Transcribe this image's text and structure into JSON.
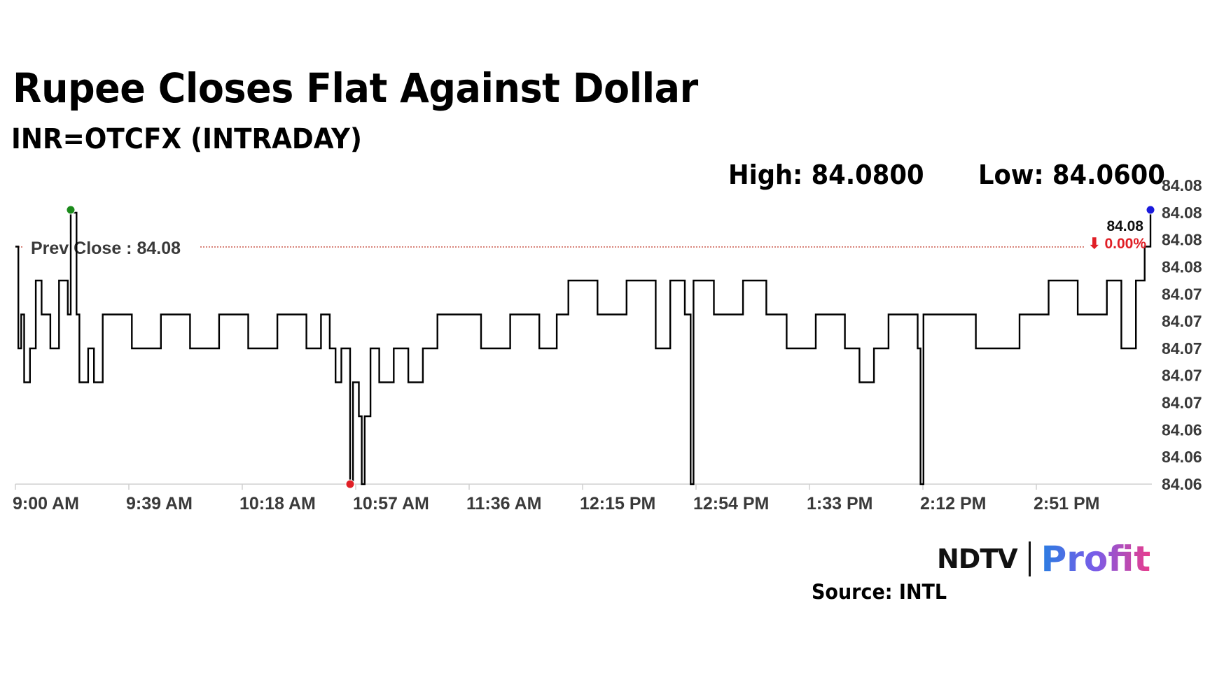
{
  "header": {
    "title": "Rupee Closes Flat Against Dollar",
    "subtitle": "INR=OTCFX (INTRADAY)"
  },
  "stats": {
    "high": "High: 84.0800",
    "low": "Low: 84.0600"
  },
  "footer": {
    "logo_ndtv": "NDTV",
    "logo_profit": "Profit",
    "source": "Source: INTL"
  },
  "colors": {
    "line": "#000000",
    "prev_close": "#c0392b",
    "change_down": "#e01f26",
    "marker_high": "#1a8a1a",
    "marker_low": "#e01f26",
    "marker_last": "#1a1adc",
    "profit_gradient": [
      "#2a7de1",
      "#7a5ce8",
      "#e93d8c"
    ]
  },
  "chart_data": {
    "type": "line",
    "ylim": [
      84.06,
      84.08
    ],
    "y_ticks": [
      "84.08",
      "84.08",
      "84.08",
      "84.08",
      "84.07",
      "84.07",
      "84.07",
      "84.07",
      "84.07",
      "84.06",
      "84.06",
      "84.06"
    ],
    "x_ticks": [
      "9:00 AM",
      "9:39 AM",
      "10:18 AM",
      "10:57 AM",
      "11:36 AM",
      "12:15 PM",
      "12:54 PM",
      "1:33 PM",
      "2:12 PM",
      "2:51 PM"
    ],
    "prev_close": {
      "label": "Prev Close : 84.08",
      "value": 84.0775
    },
    "last": {
      "value_label": "84.08",
      "change_label": "⬇ 0.00%",
      "value": 84.08
    },
    "markers": {
      "high": {
        "time": "9:19 AM",
        "value": 84.08
      },
      "low": {
        "time": "10:55 AM",
        "value": 84.06
      },
      "last": {
        "time": "3:30 PM",
        "value": 84.08
      }
    },
    "series": [
      {
        "values": [
          [
            "9:00 AM",
            84.0775
          ],
          [
            "9:01 AM",
            84.07
          ],
          [
            "9:02 AM",
            84.0725
          ],
          [
            "9:03 AM",
            84.0675
          ],
          [
            "9:05 AM",
            84.07
          ],
          [
            "9:07 AM",
            84.075
          ],
          [
            "9:09 AM",
            84.0725
          ],
          [
            "9:12 AM",
            84.07
          ],
          [
            "9:15 AM",
            84.075
          ],
          [
            "9:18 AM",
            84.0725
          ],
          [
            "9:19 AM",
            84.08
          ],
          [
            "9:21 AM",
            84.0725
          ],
          [
            "9:22 AM",
            84.0675
          ],
          [
            "9:25 AM",
            84.07
          ],
          [
            "9:27 AM",
            84.0675
          ],
          [
            "9:30 AM",
            84.0725
          ],
          [
            "9:40 AM",
            84.07
          ],
          [
            "9:50 AM",
            84.0725
          ],
          [
            "10:00 AM",
            84.07
          ],
          [
            "10:10 AM",
            84.0725
          ],
          [
            "10:20 AM",
            84.07
          ],
          [
            "10:30 AM",
            84.0725
          ],
          [
            "10:40 AM",
            84.07
          ],
          [
            "10:45 AM",
            84.0725
          ],
          [
            "10:48 AM",
            84.07
          ],
          [
            "10:50 AM",
            84.0675
          ],
          [
            "10:52 AM",
            84.07
          ],
          [
            "10:55 AM",
            84.06
          ],
          [
            "10:56 AM",
            84.0675
          ],
          [
            "10:58 AM",
            84.065
          ],
          [
            "10:59 AM",
            84.06
          ],
          [
            "11:00 AM",
            84.065
          ],
          [
            "11:02 AM",
            84.07
          ],
          [
            "11:05 AM",
            84.0675
          ],
          [
            "11:10 AM",
            84.07
          ],
          [
            "11:15 AM",
            84.0675
          ],
          [
            "11:20 AM",
            84.07
          ],
          [
            "11:25 AM",
            84.0725
          ],
          [
            "11:40 AM",
            84.07
          ],
          [
            "11:50 AM",
            84.0725
          ],
          [
            "12:00 PM",
            84.07
          ],
          [
            "12:06 PM",
            84.0725
          ],
          [
            "12:10 PM",
            84.075
          ],
          [
            "12:20 PM",
            84.0725
          ],
          [
            "12:30 PM",
            84.075
          ],
          [
            "12:40 PM",
            84.07
          ],
          [
            "12:45 PM",
            84.075
          ],
          [
            "12:50 PM",
            84.0725
          ],
          [
            "12:52 PM",
            84.06
          ],
          [
            "12:53 PM",
            84.075
          ],
          [
            "1:00 PM",
            84.0725
          ],
          [
            "1:10 PM",
            84.075
          ],
          [
            "1:18 PM",
            84.0725
          ],
          [
            "1:25 PM",
            84.07
          ],
          [
            "1:35 PM",
            84.0725
          ],
          [
            "1:45 PM",
            84.07
          ],
          [
            "1:50 PM",
            84.0675
          ],
          [
            "1:55 PM",
            84.07
          ],
          [
            "2:00 PM",
            84.0725
          ],
          [
            "2:10 PM",
            84.07
          ],
          [
            "2:11 PM",
            84.06
          ],
          [
            "2:12 PM",
            84.0725
          ],
          [
            "2:30 PM",
            84.07
          ],
          [
            "2:45 PM",
            84.0725
          ],
          [
            "2:55 PM",
            84.075
          ],
          [
            "3:05 PM",
            84.0725
          ],
          [
            "3:15 PM",
            84.075
          ],
          [
            "3:20 PM",
            84.07
          ],
          [
            "3:25 PM",
            84.075
          ],
          [
            "3:28 PM",
            84.0775
          ],
          [
            "3:30 PM",
            84.08
          ]
        ]
      }
    ]
  }
}
